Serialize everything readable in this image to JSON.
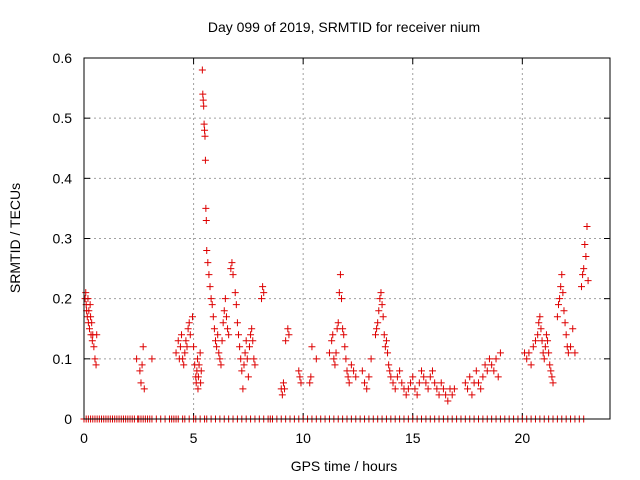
{
  "chart_data": {
    "type": "scatter",
    "title": "Day 099 of 2019, SRMTID for receiver nium",
    "xlabel": "GPS time / hours",
    "ylabel": "SRMTID / TECUs",
    "xlim": [
      0,
      24
    ],
    "ylim": [
      0,
      0.6
    ],
    "x_ticks": [
      0,
      5,
      10,
      15,
      20
    ],
    "y_ticks": [
      0,
      0.1,
      0.2,
      0.3,
      0.4,
      0.5,
      0.6
    ],
    "grid": true,
    "marker": "+",
    "color": "#dd0000",
    "series": [
      {
        "name": "SRMTID",
        "points": [
          [
            0.05,
            0.2
          ],
          [
            0.08,
            0.21
          ],
          [
            0.1,
            0.19
          ],
          [
            0.12,
            0.18
          ],
          [
            0.15,
            0.17
          ],
          [
            0.18,
            0.2
          ],
          [
            0.2,
            0.16
          ],
          [
            0.22,
            0.18
          ],
          [
            0.25,
            0.15
          ],
          [
            0.28,
            0.19
          ],
          [
            0.3,
            0.17
          ],
          [
            0.32,
            0.14
          ],
          [
            0.35,
            0.16
          ],
          [
            0.38,
            0.13
          ],
          [
            0.4,
            0.14
          ],
          [
            0.45,
            0.12
          ],
          [
            0.5,
            0.1
          ],
          [
            0.55,
            0.09
          ],
          [
            0.58,
            0.14
          ],
          [
            2.4,
            0.1
          ],
          [
            2.55,
            0.08
          ],
          [
            2.6,
            0.06
          ],
          [
            2.65,
            0.09
          ],
          [
            2.7,
            0.12
          ],
          [
            2.75,
            0.05
          ],
          [
            3.1,
            0.1
          ],
          [
            4.2,
            0.11
          ],
          [
            4.3,
            0.13
          ],
          [
            4.35,
            0.1
          ],
          [
            4.4,
            0.12
          ],
          [
            4.45,
            0.14
          ],
          [
            4.5,
            0.1
          ],
          [
            4.55,
            0.09
          ],
          [
            4.6,
            0.11
          ],
          [
            4.65,
            0.13
          ],
          [
            4.7,
            0.12
          ],
          [
            4.75,
            0.15
          ],
          [
            4.8,
            0.16
          ],
          [
            4.85,
            0.14
          ],
          [
            4.95,
            0.17
          ],
          [
            5.0,
            0.12
          ],
          [
            5.05,
            0.09
          ],
          [
            5.1,
            0.07
          ],
          [
            5.12,
            0.06
          ],
          [
            5.15,
            0.08
          ],
          [
            5.18,
            0.1
          ],
          [
            5.2,
            0.05
          ],
          [
            5.22,
            0.07
          ],
          [
            5.25,
            0.09
          ],
          [
            5.3,
            0.11
          ],
          [
            5.32,
            0.06
          ],
          [
            5.35,
            0.08
          ],
          [
            5.4,
            0.58
          ],
          [
            5.42,
            0.54
          ],
          [
            5.44,
            0.53
          ],
          [
            5.46,
            0.52
          ],
          [
            5.48,
            0.49
          ],
          [
            5.5,
            0.48
          ],
          [
            5.52,
            0.47
          ],
          [
            5.54,
            0.43
          ],
          [
            5.56,
            0.35
          ],
          [
            5.58,
            0.33
          ],
          [
            5.6,
            0.28
          ],
          [
            5.65,
            0.26
          ],
          [
            5.7,
            0.24
          ],
          [
            5.75,
            0.22
          ],
          [
            5.8,
            0.2
          ],
          [
            5.85,
            0.19
          ],
          [
            5.9,
            0.17
          ],
          [
            5.95,
            0.15
          ],
          [
            6.0,
            0.13
          ],
          [
            6.05,
            0.12
          ],
          [
            6.1,
            0.14
          ],
          [
            6.15,
            0.11
          ],
          [
            6.2,
            0.1
          ],
          [
            6.25,
            0.09
          ],
          [
            6.3,
            0.13
          ],
          [
            6.35,
            0.16
          ],
          [
            6.4,
            0.18
          ],
          [
            6.45,
            0.2
          ],
          [
            6.5,
            0.17
          ],
          [
            6.55,
            0.15
          ],
          [
            6.6,
            0.14
          ],
          [
            6.7,
            0.25
          ],
          [
            6.75,
            0.26
          ],
          [
            6.8,
            0.24
          ],
          [
            6.9,
            0.21
          ],
          [
            6.95,
            0.19
          ],
          [
            7.0,
            0.16
          ],
          [
            7.05,
            0.14
          ],
          [
            7.1,
            0.12
          ],
          [
            7.15,
            0.1
          ],
          [
            7.2,
            0.08
          ],
          [
            7.25,
            0.05
          ],
          [
            7.3,
            0.09
          ],
          [
            7.35,
            0.11
          ],
          [
            7.4,
            0.13
          ],
          [
            7.45,
            0.1
          ],
          [
            7.5,
            0.07
          ],
          [
            7.55,
            0.12
          ],
          [
            7.6,
            0.14
          ],
          [
            7.65,
            0.15
          ],
          [
            7.7,
            0.13
          ],
          [
            7.75,
            0.1
          ],
          [
            7.8,
            0.09
          ],
          [
            8.1,
            0.2
          ],
          [
            8.15,
            0.22
          ],
          [
            8.2,
            0.21
          ],
          [
            9.0,
            0.05
          ],
          [
            9.05,
            0.04
          ],
          [
            9.1,
            0.06
          ],
          [
            9.15,
            0.05
          ],
          [
            9.2,
            0.13
          ],
          [
            9.3,
            0.15
          ],
          [
            9.35,
            0.14
          ],
          [
            9.8,
            0.08
          ],
          [
            9.85,
            0.07
          ],
          [
            9.9,
            0.06
          ],
          [
            10.3,
            0.06
          ],
          [
            10.35,
            0.07
          ],
          [
            10.4,
            0.12
          ],
          [
            10.6,
            0.1
          ],
          [
            11.2,
            0.11
          ],
          [
            11.3,
            0.13
          ],
          [
            11.35,
            0.14
          ],
          [
            11.4,
            0.1
          ],
          [
            11.45,
            0.09
          ],
          [
            11.5,
            0.11
          ],
          [
            11.55,
            0.15
          ],
          [
            11.6,
            0.16
          ],
          [
            11.65,
            0.21
          ],
          [
            11.7,
            0.24
          ],
          [
            11.75,
            0.2
          ],
          [
            11.8,
            0.15
          ],
          [
            11.85,
            0.14
          ],
          [
            11.9,
            0.12
          ],
          [
            11.95,
            0.1
          ],
          [
            12.0,
            0.08
          ],
          [
            12.05,
            0.07
          ],
          [
            12.1,
            0.06
          ],
          [
            12.2,
            0.09
          ],
          [
            12.3,
            0.08
          ],
          [
            12.4,
            0.07
          ],
          [
            12.7,
            0.08
          ],
          [
            12.8,
            0.06
          ],
          [
            12.9,
            0.05
          ],
          [
            13.0,
            0.07
          ],
          [
            13.1,
            0.1
          ],
          [
            13.3,
            0.14
          ],
          [
            13.35,
            0.15
          ],
          [
            13.4,
            0.16
          ],
          [
            13.45,
            0.18
          ],
          [
            13.5,
            0.2
          ],
          [
            13.55,
            0.21
          ],
          [
            13.6,
            0.19
          ],
          [
            13.65,
            0.17
          ],
          [
            13.7,
            0.14
          ],
          [
            13.75,
            0.12
          ],
          [
            13.8,
            0.13
          ],
          [
            13.85,
            0.11
          ],
          [
            13.9,
            0.09
          ],
          [
            13.95,
            0.08
          ],
          [
            14.0,
            0.07
          ],
          [
            14.1,
            0.06
          ],
          [
            14.2,
            0.05
          ],
          [
            14.3,
            0.07
          ],
          [
            14.4,
            0.08
          ],
          [
            14.5,
            0.06
          ],
          [
            14.6,
            0.05
          ],
          [
            14.7,
            0.04
          ],
          [
            14.8,
            0.05
          ],
          [
            14.9,
            0.06
          ],
          [
            15.0,
            0.07
          ],
          [
            15.1,
            0.05
          ],
          [
            15.2,
            0.04
          ],
          [
            15.3,
            0.06
          ],
          [
            15.4,
            0.08
          ],
          [
            15.5,
            0.07
          ],
          [
            15.6,
            0.06
          ],
          [
            15.7,
            0.05
          ],
          [
            15.8,
            0.07
          ],
          [
            15.9,
            0.08
          ],
          [
            16.0,
            0.06
          ],
          [
            16.1,
            0.05
          ],
          [
            16.2,
            0.04
          ],
          [
            16.3,
            0.06
          ],
          [
            16.4,
            0.05
          ],
          [
            16.5,
            0.04
          ],
          [
            16.6,
            0.03
          ],
          [
            16.7,
            0.05
          ],
          [
            16.8,
            0.04
          ],
          [
            16.9,
            0.05
          ],
          [
            17.4,
            0.06
          ],
          [
            17.5,
            0.05
          ],
          [
            17.6,
            0.07
          ],
          [
            17.7,
            0.04
          ],
          [
            17.8,
            0.06
          ],
          [
            17.9,
            0.08
          ],
          [
            18.0,
            0.06
          ],
          [
            18.1,
            0.05
          ],
          [
            18.2,
            0.07
          ],
          [
            18.3,
            0.09
          ],
          [
            18.4,
            0.08
          ],
          [
            18.5,
            0.1
          ],
          [
            18.6,
            0.09
          ],
          [
            18.7,
            0.08
          ],
          [
            18.8,
            0.1
          ],
          [
            18.9,
            0.07
          ],
          [
            19.0,
            0.11
          ],
          [
            20.1,
            0.11
          ],
          [
            20.2,
            0.1
          ],
          [
            20.3,
            0.11
          ],
          [
            20.4,
            0.09
          ],
          [
            20.5,
            0.12
          ],
          [
            20.6,
            0.13
          ],
          [
            20.7,
            0.14
          ],
          [
            20.75,
            0.16
          ],
          [
            20.8,
            0.17
          ],
          [
            20.85,
            0.15
          ],
          [
            20.9,
            0.13
          ],
          [
            20.95,
            0.11
          ],
          [
            21.0,
            0.1
          ],
          [
            21.05,
            0.12
          ],
          [
            21.1,
            0.14
          ],
          [
            21.15,
            0.13
          ],
          [
            21.2,
            0.11
          ],
          [
            21.25,
            0.09
          ],
          [
            21.3,
            0.08
          ],
          [
            21.35,
            0.07
          ],
          [
            21.4,
            0.06
          ],
          [
            21.6,
            0.17
          ],
          [
            21.65,
            0.19
          ],
          [
            21.7,
            0.2
          ],
          [
            21.75,
            0.22
          ],
          [
            21.8,
            0.24
          ],
          [
            21.85,
            0.21
          ],
          [
            21.9,
            0.18
          ],
          [
            21.95,
            0.16
          ],
          [
            22.0,
            0.14
          ],
          [
            22.05,
            0.12
          ],
          [
            22.1,
            0.11
          ],
          [
            22.2,
            0.12
          ],
          [
            22.3,
            0.15
          ],
          [
            22.4,
            0.11
          ],
          [
            22.7,
            0.22
          ],
          [
            22.75,
            0.24
          ],
          [
            22.8,
            0.25
          ],
          [
            22.85,
            0.29
          ],
          [
            22.9,
            0.27
          ],
          [
            22.95,
            0.32
          ],
          [
            23.0,
            0.23
          ]
        ],
        "zero_points": [
          0.0,
          0.1,
          0.2,
          0.3,
          0.4,
          0.5,
          0.6,
          0.7,
          0.8,
          0.9,
          1.0,
          1.1,
          1.2,
          1.3,
          1.4,
          1.5,
          1.6,
          1.7,
          1.8,
          1.9,
          2.0,
          2.1,
          2.2,
          2.3,
          2.45,
          2.5,
          2.6,
          2.7,
          2.8,
          2.9,
          3.0,
          3.1,
          3.3,
          3.5,
          3.7,
          3.9,
          4.0,
          4.1,
          4.2,
          4.3,
          4.5,
          4.6,
          4.8,
          5.0,
          5.1,
          5.3,
          5.5,
          5.6,
          5.8,
          6.0,
          6.2,
          6.4,
          6.6,
          6.8,
          7.0,
          7.2,
          7.4,
          7.6,
          7.8,
          8.0,
          8.2,
          8.4,
          8.5,
          8.6,
          8.8,
          9.0,
          9.2,
          9.4,
          9.6,
          9.8,
          10.0,
          10.2,
          10.4,
          10.6,
          10.8,
          11.0,
          11.2,
          11.4,
          11.6,
          11.8,
          12.0,
          12.2,
          12.4,
          12.6,
          12.8,
          13.0,
          13.2,
          13.4,
          13.6,
          13.8,
          14.0,
          14.2,
          14.4,
          14.6,
          14.8,
          15.0,
          15.2,
          15.4,
          15.6,
          15.8,
          16.0,
          16.2,
          16.4,
          16.6,
          16.8,
          17.0,
          17.2,
          17.4,
          17.6,
          17.8,
          18.0,
          18.2,
          18.4,
          18.6,
          18.8,
          19.0,
          19.2,
          19.4,
          19.6,
          19.8,
          20.0,
          20.2,
          20.4,
          20.6,
          20.8,
          21.0,
          21.2,
          21.4,
          21.6,
          21.8,
          22.0,
          22.2,
          22.4,
          22.6,
          22.8
        ]
      }
    ]
  }
}
